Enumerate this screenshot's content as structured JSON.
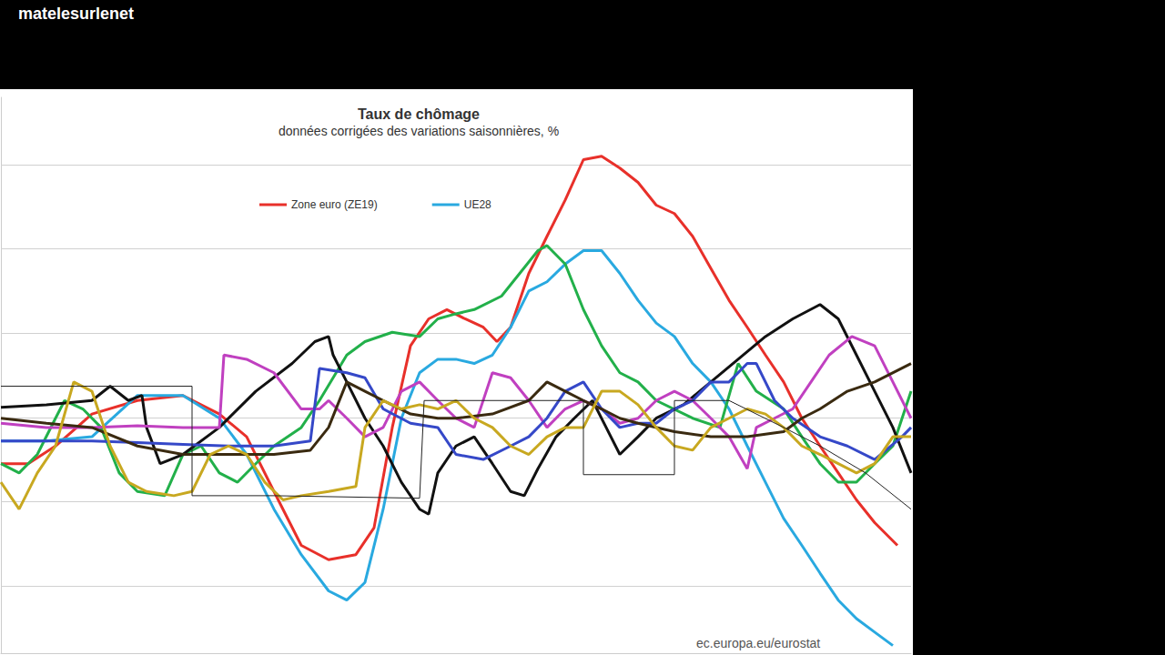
{
  "overlay": {
    "channel": "matelesurlenet"
  },
  "chart_data": {
    "type": "line",
    "title": "Taux de chômage",
    "subtitle": "données corrigées des variations saisonnières, %",
    "source": "ec.europa.eu/eurostat",
    "xlim": [
      0,
      100
    ],
    "ylim": [
      0.2,
      6.8
    ],
    "yticks": [
      1,
      2,
      3,
      4,
      5,
      6
    ],
    "grid": true,
    "tick_labels": false,
    "legend": "top",
    "series": [
      {
        "name": "Zone euro (ZE19)",
        "color": "#e8302a",
        "line_style": "solid",
        "x": [
          0,
          3,
          6,
          10,
          15,
          20,
          24,
          27,
          30,
          33,
          36,
          39,
          41,
          43,
          45,
          47,
          49,
          51,
          53,
          54.5,
          56,
          58,
          60,
          62,
          64,
          66,
          68,
          70,
          72,
          74,
          76,
          78,
          80,
          82,
          84,
          86,
          88,
          90,
          92,
          94,
          96,
          98.5
        ],
        "values": [
          2.45,
          2.45,
          2.66,
          3.04,
          3.2,
          3.26,
          3.04,
          2.77,
          2.12,
          1.48,
          1.31,
          1.37,
          1.69,
          2.88,
          3.85,
          4.17,
          4.28,
          4.17,
          4.07,
          3.9,
          4.07,
          4.71,
          5.15,
          5.58,
          6.06,
          6.1,
          5.96,
          5.79,
          5.52,
          5.42,
          5.15,
          4.77,
          4.39,
          4.07,
          3.74,
          3.42,
          2.99,
          2.66,
          2.34,
          2.02,
          1.75,
          1.48
        ]
      },
      {
        "name": "UE28",
        "color": "#29a9e0",
        "line_style": "solid",
        "x": [
          0,
          5,
          10,
          15,
          20,
          24,
          27,
          30,
          33,
          36,
          38,
          40,
          42,
          44,
          46,
          48,
          50,
          52,
          54,
          56,
          58,
          60,
          62,
          64,
          66,
          68,
          70,
          72,
          74,
          76,
          78,
          80,
          82,
          84,
          86,
          88,
          90,
          92,
          94,
          96,
          98
        ],
        "values": [
          2.72,
          2.72,
          2.77,
          3.26,
          3.26,
          2.99,
          2.56,
          1.91,
          1.37,
          0.94,
          0.83,
          1.04,
          1.91,
          2.99,
          3.53,
          3.69,
          3.69,
          3.64,
          3.74,
          4.07,
          4.5,
          4.61,
          4.82,
          4.98,
          4.98,
          4.71,
          4.39,
          4.12,
          3.96,
          3.64,
          3.42,
          3.1,
          2.66,
          2.23,
          1.8,
          1.48,
          1.15,
          0.83,
          0.61,
          0.45,
          0.29
        ]
      },
      {
        "color": "#22b04a",
        "line_style": "solid",
        "x": [
          0,
          2,
          4,
          6,
          7,
          9,
          11,
          13,
          15,
          18,
          20,
          22,
          24,
          26,
          28,
          30,
          33,
          35,
          38,
          40,
          43,
          46,
          48,
          50,
          52,
          55,
          57,
          59,
          60,
          62,
          64,
          66,
          68,
          70,
          72,
          76,
          79,
          81,
          83,
          86,
          88,
          90,
          92,
          94,
          96,
          98,
          100
        ],
        "values": [
          2.45,
          2.34,
          2.56,
          2.99,
          3.2,
          3.1,
          2.88,
          2.34,
          2.12,
          2.07,
          2.56,
          2.66,
          2.34,
          2.23,
          2.45,
          2.66,
          2.88,
          3.2,
          3.74,
          3.9,
          4.01,
          3.96,
          4.17,
          4.23,
          4.28,
          4.44,
          4.71,
          4.98,
          5.04,
          4.82,
          4.28,
          3.85,
          3.53,
          3.42,
          3.2,
          2.99,
          2.88,
          3.64,
          3.31,
          3.1,
          2.77,
          2.45,
          2.23,
          2.23,
          2.45,
          2.66,
          3.31
        ]
      },
      {
        "color": "#111111",
        "line_style": "solid",
        "x": [
          0,
          5,
          10,
          12,
          14,
          15.5,
          16,
          17.5,
          20,
          24,
          28,
          32,
          34.5,
          36,
          36.5,
          38,
          40,
          42,
          44,
          46,
          47,
          48,
          50,
          52,
          54,
          56,
          57.5,
          59,
          61,
          63,
          65,
          66.5,
          68,
          70,
          72,
          75,
          78,
          81,
          84,
          87,
          90,
          92,
          94,
          96,
          98,
          100
        ],
        "values": [
          3.12,
          3.15,
          3.2,
          3.37,
          3.2,
          3.26,
          2.88,
          2.45,
          2.56,
          2.88,
          3.31,
          3.64,
          3.9,
          3.96,
          3.74,
          3.42,
          2.99,
          2.66,
          2.23,
          1.91,
          1.85,
          2.34,
          2.66,
          2.77,
          2.45,
          2.12,
          2.07,
          2.39,
          2.77,
          2.99,
          3.2,
          2.88,
          2.56,
          2.77,
          2.99,
          3.15,
          3.42,
          3.69,
          3.96,
          4.17,
          4.34,
          4.17,
          3.74,
          3.31,
          2.88,
          2.34
        ]
      },
      {
        "color": "#c040c0",
        "line_style": "solid",
        "x": [
          0,
          5,
          10,
          15,
          20,
          24,
          24.5,
          27,
          30,
          33,
          35,
          36,
          38,
          40,
          42,
          44,
          46,
          48,
          50,
          52,
          54,
          56,
          58,
          60,
          62,
          64,
          66,
          68,
          70,
          72,
          74,
          76,
          78,
          80,
          82,
          83,
          85,
          87,
          89,
          91,
          93.5,
          96,
          98,
          100
        ],
        "values": [
          2.93,
          2.88,
          2.88,
          2.9,
          2.88,
          2.88,
          3.74,
          3.69,
          3.53,
          3.1,
          3.1,
          3.2,
          2.99,
          2.77,
          2.88,
          3.31,
          3.42,
          3.2,
          2.99,
          2.88,
          3.53,
          3.47,
          3.2,
          2.88,
          3.1,
          3.2,
          3.1,
          2.93,
          2.99,
          3.2,
          3.31,
          3.2,
          2.99,
          2.77,
          2.39,
          2.88,
          2.99,
          3.1,
          3.42,
          3.74,
          3.96,
          3.85,
          3.42,
          2.99
        ]
      },
      {
        "color": "#3548c8",
        "line_style": "solid",
        "x": [
          0,
          10,
          15,
          20,
          25,
          30,
          34,
          35,
          38,
          40,
          42,
          45,
          48,
          50,
          53,
          56,
          58,
          60,
          62,
          64,
          66,
          68,
          70,
          72,
          74,
          76,
          78,
          80,
          82,
          83,
          85,
          87,
          90,
          93,
          96,
          99,
          100
        ],
        "values": [
          2.72,
          2.72,
          2.7,
          2.68,
          2.66,
          2.66,
          2.72,
          3.58,
          3.53,
          3.47,
          3.1,
          2.93,
          2.88,
          2.56,
          2.5,
          2.66,
          2.77,
          2.99,
          3.31,
          3.42,
          3.1,
          2.88,
          2.93,
          2.93,
          3.1,
          3.2,
          3.42,
          3.42,
          3.64,
          3.64,
          3.2,
          2.99,
          2.77,
          2.66,
          2.5,
          2.77,
          2.88
        ]
      },
      {
        "color": "#3a2a10",
        "line_style": "solid",
        "x": [
          0,
          5,
          10,
          15,
          20,
          25,
          30,
          34,
          36,
          38,
          40,
          42,
          45,
          48,
          50,
          54,
          58,
          60,
          62,
          64,
          66,
          68,
          70,
          74,
          78,
          82,
          86,
          88,
          90,
          93,
          96,
          100
        ],
        "values": [
          2.99,
          2.93,
          2.88,
          2.66,
          2.56,
          2.56,
          2.56,
          2.61,
          2.88,
          3.42,
          3.31,
          3.2,
          3.04,
          2.99,
          2.99,
          3.04,
          3.2,
          3.42,
          3.31,
          3.2,
          3.1,
          2.99,
          2.93,
          2.83,
          2.77,
          2.77,
          2.83,
          2.99,
          3.1,
          3.31,
          3.42,
          3.64
        ]
      },
      {
        "color": "#c8a820",
        "line_style": "solid",
        "x": [
          0,
          2,
          4,
          6,
          8,
          10,
          12,
          14,
          16,
          19,
          21,
          23,
          25,
          27,
          29,
          31,
          33,
          36,
          39,
          40,
          42,
          44,
          46,
          48,
          50,
          52,
          54,
          56,
          58,
          60,
          62,
          64,
          66,
          68,
          70,
          72,
          74,
          76,
          78,
          80,
          82,
          84,
          86,
          88,
          90,
          92,
          94,
          96,
          98,
          100
        ],
        "values": [
          2.23,
          1.91,
          2.34,
          2.66,
          3.42,
          3.31,
          2.66,
          2.23,
          2.12,
          2.07,
          2.12,
          2.56,
          2.66,
          2.56,
          2.23,
          2.02,
          2.07,
          2.12,
          2.18,
          2.88,
          3.2,
          3.1,
          3.15,
          3.1,
          3.2,
          2.99,
          2.88,
          2.66,
          2.56,
          2.77,
          2.88,
          2.88,
          3.31,
          3.31,
          3.15,
          2.88,
          2.66,
          2.61,
          2.88,
          2.99,
          3.1,
          3.04,
          2.88,
          2.66,
          2.56,
          2.45,
          2.34,
          2.45,
          2.77,
          2.77
        ]
      },
      {
        "color": "#222222",
        "line_style": "thin",
        "x": [
          0,
          21,
          21,
          30,
          46,
          46.5,
          64,
          64,
          74,
          74,
          80,
          86,
          90,
          95,
          100
        ],
        "values": [
          3.37,
          3.37,
          2.07,
          2.07,
          2.04,
          3.2,
          3.2,
          2.32,
          2.32,
          3.2,
          3.2,
          2.88,
          2.66,
          2.34,
          1.91
        ]
      }
    ]
  }
}
